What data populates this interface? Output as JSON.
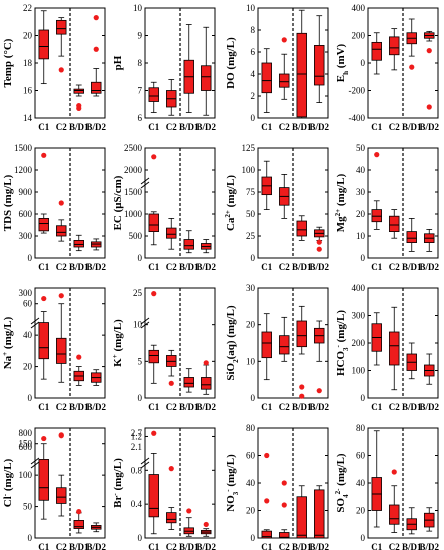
{
  "figure": {
    "box_fill": "#ee1c1c",
    "box_stroke": "#000000",
    "outlier_color": "#ee1c1c",
    "background": "#ffffff"
  },
  "chart_data": [
    {
      "type": "box",
      "ylabel": "Temp (°C)",
      "yticks": [
        14,
        16,
        18,
        20,
        22
      ],
      "ylim": [
        14,
        22
      ],
      "categories": [
        "C1",
        "C2",
        "B/D1",
        "B/D2"
      ],
      "dashed_separator_after": "C2",
      "boxes": [
        {
          "min": 16.5,
          "q1": 18.3,
          "median": 19.2,
          "q3": 20.4,
          "max": 21.8
        },
        {
          "min": 18.5,
          "q1": 20.1,
          "median": 20.5,
          "q3": 21.1,
          "max": 21.3
        },
        {
          "min": 15.6,
          "q1": 15.8,
          "median": 16.0,
          "q3": 16.1,
          "max": 16.4
        },
        {
          "min": 15.6,
          "q1": 15.8,
          "median": 16.0,
          "q3": 16.6,
          "max": 17.6
        }
      ],
      "outliers": [
        {
          "category": "C2",
          "value": 17.5
        },
        {
          "category": "B/D1",
          "value": 14.9
        },
        {
          "category": "B/D1",
          "value": 14.7
        },
        {
          "category": "B/D2",
          "value": 21.3
        },
        {
          "category": "B/D2",
          "value": 19.0
        }
      ]
    },
    {
      "type": "box",
      "ylabel": "pH",
      "yticks": [
        6,
        7,
        8,
        9,
        10
      ],
      "ylim": [
        6,
        10
      ],
      "categories": [
        "C1",
        "C2",
        "B/D1",
        "B/D2"
      ],
      "dashed_separator_after": "C2",
      "boxes": [
        {
          "min": 6.2,
          "q1": 6.6,
          "median": 6.8,
          "q3": 7.1,
          "max": 7.3
        },
        {
          "min": 6.1,
          "q1": 6.4,
          "median": 6.7,
          "q3": 7.0,
          "max": 7.4
        },
        {
          "min": 6.2,
          "q1": 6.9,
          "median": 7.5,
          "q3": 8.1,
          "max": 9.4
        },
        {
          "min": 6.1,
          "q1": 7.0,
          "median": 7.5,
          "q3": 7.9,
          "max": 9.3
        }
      ],
      "outliers": []
    },
    {
      "type": "box",
      "ylabel": "DO (mg/L)",
      "yticks": [
        0,
        2,
        4,
        6,
        8,
        10
      ],
      "ylim": [
        0,
        10
      ],
      "categories": [
        "C1",
        "C2",
        "B/D1",
        "B/D2"
      ],
      "dashed_separator_after": "C2",
      "boxes": [
        {
          "min": 0.5,
          "q1": 2.3,
          "median": 3.4,
          "q3": 5.0,
          "max": 6.3
        },
        {
          "min": 1.7,
          "q1": 2.8,
          "median": 3.3,
          "q3": 4.0,
          "max": 5.8
        },
        {
          "min": 0.0,
          "q1": 0.1,
          "median": 4.0,
          "q3": 7.7,
          "max": 9.8
        },
        {
          "min": 1.4,
          "q1": 3.0,
          "median": 3.8,
          "q3": 6.6,
          "max": 9.3
        }
      ],
      "outliers": [
        {
          "category": "C2",
          "value": 7.1
        }
      ]
    },
    {
      "type": "box",
      "ylabel": "Eh (mV)",
      "yticks": [
        -400,
        -200,
        0,
        200,
        400
      ],
      "ylim": [
        -400,
        400
      ],
      "categories": [
        "C1",
        "C2",
        "B/D1",
        "B/D2"
      ],
      "dashed_separator_after": "C2",
      "boxes": [
        {
          "min": -80,
          "q1": 20,
          "median": 100,
          "q3": 150,
          "max": 220
        },
        {
          "min": -50,
          "q1": 60,
          "median": 110,
          "q3": 190,
          "max": 250
        },
        {
          "min": 50,
          "q1": 140,
          "median": 180,
          "q3": 220,
          "max": 320
        },
        {
          "min": 160,
          "q1": 180,
          "median": 200,
          "q3": 220,
          "max": 230
        }
      ],
      "outliers": [
        {
          "category": "B/D1",
          "value": -30
        },
        {
          "category": "B/D2",
          "value": 90
        },
        {
          "category": "B/D2",
          "value": -320
        }
      ]
    },
    {
      "type": "box",
      "ylabel": "TDS (mg/L)",
      "yticks": [
        0,
        300,
        600,
        900,
        1200,
        1500
      ],
      "ylim": [
        0,
        1500
      ],
      "categories": [
        "C1",
        "C2",
        "B/D1",
        "B/D2"
      ],
      "dashed_separator_after": "C2",
      "boxes": [
        {
          "min": 340,
          "q1": 370,
          "median": 470,
          "q3": 540,
          "max": 600
        },
        {
          "min": 230,
          "q1": 300,
          "median": 350,
          "q3": 440,
          "max": 520
        },
        {
          "min": 100,
          "q1": 150,
          "median": 185,
          "q3": 240,
          "max": 310
        },
        {
          "min": 110,
          "q1": 150,
          "median": 190,
          "q3": 220,
          "max": 260
        }
      ],
      "outliers": [
        {
          "category": "C1",
          "value": 1400
        },
        {
          "category": "C2",
          "value": 750
        }
      ]
    },
    {
      "type": "box",
      "ylabel": "EC (μS/cm)",
      "yticks": [
        0,
        500,
        1000,
        1500,
        2000,
        2500
      ],
      "ylim": [
        0,
        2500
      ],
      "axis_break": true,
      "categories": [
        "C1",
        "C2",
        "B/D1",
        "B/D2"
      ],
      "dashed_separator_after": "C2",
      "boxes": [
        {
          "min": 300,
          "q1": 600,
          "median": 750,
          "q3": 1000,
          "max": 1050
        },
        {
          "min": 200,
          "q1": 450,
          "median": 540,
          "q3": 680,
          "max": 900
        },
        {
          "min": 120,
          "q1": 200,
          "median": 280,
          "q3": 420,
          "max": 620
        },
        {
          "min": 120,
          "q1": 200,
          "median": 260,
          "q3": 330,
          "max": 420
        }
      ],
      "outliers": [
        {
          "category": "C1",
          "value": 2300
        }
      ]
    },
    {
      "type": "box",
      "ylabel": "Ca2+ (mg/L)",
      "yticks": [
        0,
        25,
        50,
        75,
        100,
        125
      ],
      "ylim": [
        0,
        125
      ],
      "categories": [
        "C1",
        "C2",
        "B/D1",
        "B/D2"
      ],
      "dashed_separator_after": "C2",
      "boxes": [
        {
          "min": 55,
          "q1": 72,
          "median": 82,
          "q3": 92,
          "max": 110
        },
        {
          "min": 45,
          "q1": 60,
          "median": 70,
          "q3": 80,
          "max": 95
        },
        {
          "min": 20,
          "q1": 25,
          "median": 32,
          "q3": 42,
          "max": 48
        },
        {
          "min": 20,
          "q1": 24,
          "median": 28,
          "q3": 32,
          "max": 35
        }
      ],
      "outliers": [
        {
          "category": "B/D2",
          "value": 18
        },
        {
          "category": "B/D2",
          "value": 10
        }
      ]
    },
    {
      "type": "box",
      "ylabel": "Mg2+ (mg/L)",
      "yticks": [
        0,
        10,
        20,
        30,
        40,
        50
      ],
      "ylim": [
        0,
        50
      ],
      "categories": [
        "C1",
        "C2",
        "B/D1",
        "B/D2"
      ],
      "dashed_separator_after": "C2",
      "boxes": [
        {
          "min": 13,
          "q1": 16.5,
          "median": 19,
          "q3": 22,
          "max": 26
        },
        {
          "min": 9,
          "q1": 12,
          "median": 15,
          "q3": 19,
          "max": 22
        },
        {
          "min": 3,
          "q1": 7,
          "median": 9,
          "q3": 12,
          "max": 18
        },
        {
          "min": 3,
          "q1": 7,
          "median": 9,
          "q3": 11,
          "max": 13
        }
      ],
      "outliers": [
        {
          "category": "C1",
          "value": 47
        }
      ]
    },
    {
      "type": "box",
      "ylabel": "Na+ (mg/L)",
      "yticks": [
        0,
        20,
        40,
        60
      ],
      "extra_tick": 300,
      "ylim": [
        0,
        70
      ],
      "axis_break": true,
      "categories": [
        "C1",
        "C2",
        "B/D1",
        "B/D2"
      ],
      "dashed_separator_after": "C2",
      "boxes": [
        {
          "min": 12,
          "q1": 25,
          "median": 32,
          "q3": 48,
          "max": 55
        },
        {
          "min": 10,
          "q1": 22,
          "median": 28,
          "q3": 38,
          "max": 60
        },
        {
          "min": 8,
          "q1": 11,
          "median": 14,
          "q3": 17,
          "max": 20
        },
        {
          "min": 8,
          "q1": 10,
          "median": 13,
          "q3": 16,
          "max": 18
        }
      ],
      "outliers": [
        {
          "category": "C1",
          "value": 300
        },
        {
          "category": "C2",
          "value": 200
        },
        {
          "category": "B/D1",
          "value": 26
        }
      ]
    },
    {
      "type": "box",
      "ylabel": "K+ (mg/L)",
      "yticks": [
        0,
        5,
        10
      ],
      "extra_tick": 25,
      "ylim": [
        0,
        15
      ],
      "axis_break": true,
      "categories": [
        "C1",
        "C2",
        "B/D1",
        "B/D2"
      ],
      "dashed_separator_after": "C2",
      "boxes": [
        {
          "min": 2,
          "q1": 4.8,
          "median": 5.8,
          "q3": 6.5,
          "max": 7.2
        },
        {
          "min": 3,
          "q1": 4.3,
          "median": 5.0,
          "q3": 5.8,
          "max": 6.5
        },
        {
          "min": 0.8,
          "q1": 1.5,
          "median": 2.0,
          "q3": 2.8,
          "max": 4.0
        },
        {
          "min": 0.5,
          "q1": 1.2,
          "median": 1.8,
          "q3": 2.8,
          "max": 4.5
        }
      ],
      "outliers": [
        {
          "category": "C1",
          "value": 27
        },
        {
          "category": "C2",
          "value": 2.0
        },
        {
          "category": "B/D2",
          "value": 4.8
        }
      ]
    },
    {
      "type": "box",
      "ylabel": "SiO2(aq) (mg/L)",
      "yticks": [
        0,
        10,
        20,
        30
      ],
      "ylim": [
        0,
        30
      ],
      "categories": [
        "C1",
        "C2",
        "B/D1",
        "B/D2"
      ],
      "dashed_separator_after": "C2",
      "boxes": [
        {
          "min": 5,
          "q1": 11,
          "median": 15,
          "q3": 18,
          "max": 23
        },
        {
          "min": 10,
          "q1": 12,
          "median": 14,
          "q3": 17,
          "max": 22
        },
        {
          "min": 12,
          "q1": 14,
          "median": 17,
          "q3": 21,
          "max": 25
        },
        {
          "min": 10,
          "q1": 15,
          "median": 17,
          "q3": 19,
          "max": 21
        }
      ],
      "outliers": [
        {
          "category": "B/D1",
          "value": 3
        },
        {
          "category": "B/D1",
          "value": 0.5
        },
        {
          "category": "B/D2",
          "value": 2
        }
      ]
    },
    {
      "type": "box",
      "ylabel": "HCO3- (mg/L)",
      "yticks": [
        0,
        100,
        200,
        300,
        400
      ],
      "ylim": [
        0,
        400
      ],
      "categories": [
        "C1",
        "C2",
        "B/D1",
        "B/D2"
      ],
      "dashed_separator_after": "C2",
      "boxes": [
        {
          "min": 120,
          "q1": 170,
          "median": 220,
          "q3": 270,
          "max": 310
        },
        {
          "min": 30,
          "q1": 120,
          "median": 190,
          "q3": 240,
          "max": 330
        },
        {
          "min": 70,
          "q1": 100,
          "median": 130,
          "q3": 160,
          "max": 200
        },
        {
          "min": 50,
          "q1": 80,
          "median": 100,
          "q3": 120,
          "max": 160
        }
      ],
      "outliers": []
    },
    {
      "type": "box",
      "ylabel": "Cl- (mg/L)",
      "yticks": [
        0,
        50,
        100,
        150
      ],
      "extra_tick": 800,
      "extra_tick2": 600,
      "ylim": [
        0,
        175
      ],
      "axis_break": true,
      "categories": [
        "C1",
        "C2",
        "B/D1",
        "B/D2"
      ],
      "dashed_separator_after": "C2",
      "boxes": [
        {
          "min": 30,
          "q1": 60,
          "median": 80,
          "q3": 125,
          "max": 150
        },
        {
          "min": 35,
          "q1": 55,
          "median": 65,
          "q3": 80,
          "max": 100
        },
        {
          "min": 8,
          "q1": 15,
          "median": 18,
          "q3": 28,
          "max": 40
        },
        {
          "min": 10,
          "q1": 14,
          "median": 17,
          "q3": 20,
          "max": 24
        }
      ],
      "outliers": [
        {
          "category": "C1",
          "value": 750
        },
        {
          "category": "C2",
          "value": 500
        },
        {
          "category": "C2",
          "value": 420
        },
        {
          "category": "B/D1",
          "value": 42
        }
      ]
    },
    {
      "type": "box",
      "ylabel": "Br- (mg/L)",
      "yticks": [
        0.0,
        0.4,
        0.8,
        1.2
      ],
      "extra_tick": 2.7,
      "extra_tick2": 2.1,
      "ylim": [
        0,
        1.3
      ],
      "axis_break": true,
      "categories": [
        "C1",
        "C2",
        "B/D1",
        "B/D2"
      ],
      "dashed_separator_after": "C2",
      "boxes": [
        {
          "min": 0.05,
          "q1": 0.25,
          "median": 0.35,
          "q3": 0.75,
          "max": 1.0
        },
        {
          "min": 0.1,
          "q1": 0.18,
          "median": 0.22,
          "q3": 0.3,
          "max": 0.36
        },
        {
          "min": 0.02,
          "q1": 0.05,
          "median": 0.08,
          "q3": 0.12,
          "max": 0.24
        },
        {
          "min": 0.02,
          "q1": 0.05,
          "median": 0.07,
          "q3": 0.09,
          "max": 0.11
        }
      ],
      "outliers": [
        {
          "category": "C1",
          "value": 2.1
        },
        {
          "category": "C2",
          "value": 0.82
        },
        {
          "category": "B/D1",
          "value": 0.32
        },
        {
          "category": "B/D2",
          "value": 0.16
        }
      ]
    },
    {
      "type": "box",
      "ylabel": "NO3- (mg/L)",
      "yticks": [
        0,
        20,
        40,
        60,
        80
      ],
      "ylim": [
        0,
        80
      ],
      "categories": [
        "C1",
        "C2",
        "B/D1",
        "B/D2"
      ],
      "dashed_separator_after": "C2",
      "boxes": [
        {
          "min": 0,
          "q1": 0,
          "median": 1,
          "q3": 5,
          "max": 6
        },
        {
          "min": 0,
          "q1": 0,
          "median": 0.5,
          "q3": 4,
          "max": 6
        },
        {
          "min": 0,
          "q1": 0,
          "median": 2,
          "q3": 30,
          "max": 38
        },
        {
          "min": 0,
          "q1": 0,
          "median": 2,
          "q3": 35,
          "max": 38
        }
      ],
      "outliers": [
        {
          "category": "C1",
          "value": 60
        },
        {
          "category": "C1",
          "value": 27
        },
        {
          "category": "C2",
          "value": 40
        },
        {
          "category": "C2",
          "value": 24
        }
      ]
    },
    {
      "type": "box",
      "ylabel": "SO42- (mg/L)",
      "yticks": [
        0,
        20,
        40,
        60,
        80
      ],
      "ylim": [
        0,
        80
      ],
      "categories": [
        "C1",
        "C2",
        "B/D1",
        "B/D2"
      ],
      "dashed_separator_after": "C2",
      "boxes": [
        {
          "min": 8,
          "q1": 20,
          "median": 32,
          "q3": 44,
          "max": 78
        },
        {
          "min": 4,
          "q1": 10,
          "median": 14,
          "q3": 24,
          "max": 38
        },
        {
          "min": 3,
          "q1": 6,
          "median": 10,
          "q3": 14,
          "max": 22
        },
        {
          "min": 5,
          "q1": 8,
          "median": 13,
          "q3": 18,
          "max": 22
        }
      ],
      "outliers": [
        {
          "category": "C2",
          "value": 48
        }
      ]
    }
  ]
}
